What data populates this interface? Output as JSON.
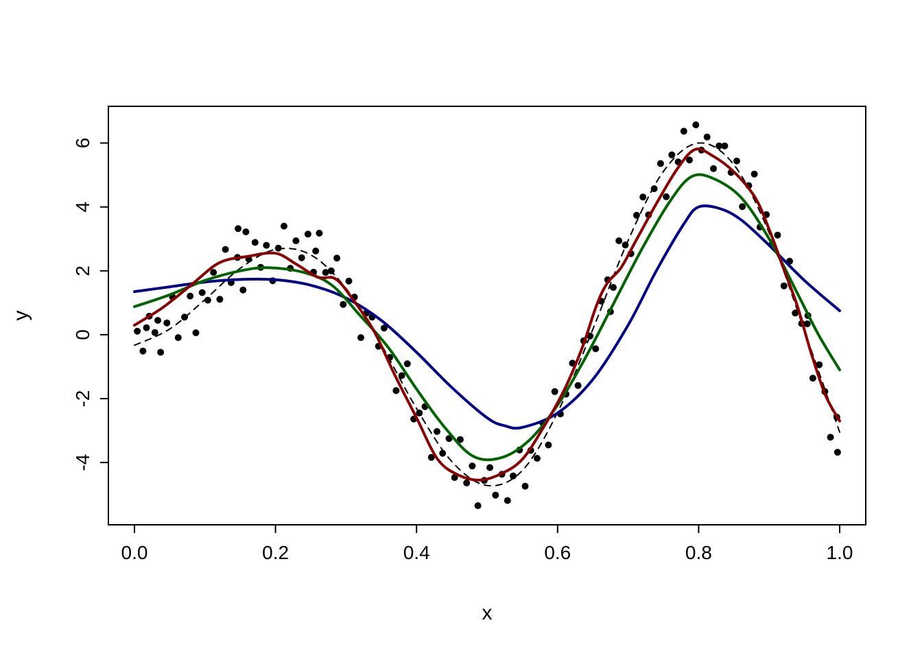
{
  "figure": {
    "background": "#ffffff",
    "description": "R-style scatter plot of noisy observations with true function (dashed) and three smoothing fits"
  },
  "chart_data": {
    "type": "scatter",
    "title": "",
    "xlabel": "x",
    "ylabel": "y",
    "xlim": [
      -0.037,
      1.037
    ],
    "ylim": [
      -5.95,
      7.15
    ],
    "xticks": [
      0.0,
      0.2,
      0.4,
      0.6,
      0.8,
      1.0
    ],
    "yticks": [
      -4,
      -2,
      0,
      2,
      4,
      6
    ],
    "xtick_labels": [
      "0.0",
      "0.2",
      "0.4",
      "0.6",
      "0.8",
      "1.0"
    ],
    "ytick_labels": [
      "-4",
      "-2",
      "0",
      "2",
      "4",
      "6"
    ],
    "grid": false,
    "legend": "none",
    "colors": {
      "points": "#000000",
      "true_function": "#000000",
      "fit_low_df": "#00008B",
      "fit_mid_df": "#006400",
      "fit_high_df": "#8B0000"
    },
    "series": [
      {
        "name": "observations",
        "type": "scatter",
        "color": "#000000",
        "marker": "circle",
        "size": 5,
        "x": [
          0.004,
          0.012,
          0.021,
          0.029,
          0.037,
          0.046,
          0.054,
          0.062,
          0.071,
          0.079,
          0.087,
          0.096,
          0.104,
          0.112,
          0.121,
          0.129,
          0.137,
          0.146,
          0.154,
          0.162,
          0.171,
          0.179,
          0.187,
          0.196,
          0.204,
          0.212,
          0.221,
          0.229,
          0.237,
          0.246,
          0.254,
          0.262,
          0.271,
          0.279,
          0.287,
          0.296,
          0.304,
          0.312,
          0.321,
          0.329,
          0.337,
          0.346,
          0.354,
          0.362,
          0.371,
          0.379,
          0.387,
          0.396,
          0.404,
          0.412,
          0.421,
          0.429,
          0.437,
          0.446,
          0.454,
          0.462,
          0.471,
          0.479,
          0.487,
          0.496,
          0.504,
          0.512,
          0.521,
          0.529,
          0.537,
          0.546,
          0.554,
          0.562,
          0.571,
          0.579,
          0.587,
          0.596,
          0.604,
          0.612,
          0.621,
          0.629,
          0.637,
          0.646,
          0.654,
          0.662,
          0.671,
          0.679,
          0.687,
          0.696,
          0.704,
          0.712,
          0.721,
          0.729,
          0.737,
          0.746,
          0.754,
          0.762,
          0.771,
          0.779,
          0.787,
          0.796,
          0.804,
          0.812,
          0.821,
          0.829,
          0.837,
          0.846,
          0.854,
          0.862,
          0.871,
          0.879,
          0.887,
          0.896,
          0.904,
          0.912,
          0.921,
          0.929,
          0.937,
          0.946,
          0.954,
          0.962,
          0.971,
          0.979,
          0.987,
          0.996,
          0.147,
          0.158,
          0.017,
          0.033,
          0.675,
          0.997,
          0.955,
          0.257
        ],
        "y": [
          0.11,
          -0.51,
          0.58,
          0.07,
          -0.55,
          0.37,
          1.18,
          -0.09,
          0.55,
          1.21,
          0.06,
          1.32,
          1.08,
          1.95,
          1.11,
          2.67,
          1.63,
          2.42,
          1.4,
          2.37,
          2.89,
          2.11,
          2.8,
          1.69,
          2.71,
          3.4,
          2.08,
          2.94,
          2.41,
          3.15,
          1.96,
          3.18,
          1.95,
          2.0,
          2.4,
          0.95,
          1.68,
          1.18,
          -0.09,
          0.68,
          0.55,
          -0.36,
          0.21,
          -0.71,
          -1.75,
          -1.28,
          -0.91,
          -2.64,
          -2.45,
          -2.25,
          -3.84,
          -3.03,
          -3.71,
          -3.25,
          -4.47,
          -3.28,
          -4.64,
          -4.11,
          -5.35,
          -4.56,
          -4.16,
          -5.02,
          -4.37,
          -5.19,
          -4.42,
          -3.61,
          -4.74,
          -3.62,
          -3.87,
          -2.76,
          -3.45,
          -1.78,
          -2.48,
          -1.86,
          -0.89,
          -1.59,
          -0.19,
          -0.04,
          -0.44,
          1.05,
          1.72,
          1.48,
          2.94,
          2.81,
          2.54,
          3.74,
          4.31,
          3.75,
          4.57,
          5.36,
          4.32,
          5.63,
          5.41,
          6.37,
          5.47,
          6.57,
          5.78,
          6.19,
          5.2,
          5.91,
          5.91,
          5.08,
          5.44,
          4.01,
          4.67,
          5.03,
          3.37,
          3.76,
          2.83,
          3.12,
          1.53,
          2.3,
          0.68,
          0.35,
          0.34,
          -1.36,
          -0.94,
          -1.78,
          -3.21,
          -2.58,
          3.32,
          3.22,
          0.22,
          0.45,
          0.72,
          -3.68,
          0.6,
          2.62
        ]
      },
      {
        "name": "true-function",
        "type": "line",
        "style": "dashed",
        "color": "#000000",
        "width": 2,
        "x": [
          0.0,
          0.05,
          0.1,
          0.15,
          0.2,
          0.25,
          0.3,
          0.35,
          0.4,
          0.45,
          0.5,
          0.55,
          0.6,
          0.65,
          0.7,
          0.75,
          0.8,
          0.85,
          0.9,
          0.95,
          1.0
        ],
        "y": [
          -0.33,
          0.18,
          1.1,
          2.08,
          2.67,
          2.5,
          1.45,
          -0.31,
          -2.31,
          -3.97,
          -4.72,
          -4.25,
          -2.43,
          0.17,
          2.95,
          5.11,
          6.0,
          5.32,
          3.19,
          0.13,
          -3.05
        ]
      },
      {
        "name": "smooth-fit-low-df",
        "type": "line",
        "style": "solid",
        "color": "#00008B",
        "width": 4,
        "x": [
          0.0,
          0.05,
          0.1,
          0.15,
          0.2,
          0.25,
          0.3,
          0.35,
          0.4,
          0.45,
          0.5,
          0.525,
          0.55,
          0.6,
          0.65,
          0.7,
          0.74,
          0.78,
          0.8,
          0.83,
          0.86,
          0.9,
          0.95,
          1.0
        ],
        "y": [
          1.35,
          1.5,
          1.65,
          1.73,
          1.72,
          1.55,
          1.15,
          0.45,
          -0.55,
          -1.65,
          -2.6,
          -2.85,
          -2.9,
          -2.45,
          -1.4,
          0.3,
          2.0,
          3.5,
          4.0,
          3.95,
          3.6,
          2.8,
          1.7,
          0.75
        ]
      },
      {
        "name": "smooth-fit-mid-df",
        "type": "line",
        "style": "solid",
        "color": "#006400",
        "width": 4,
        "x": [
          0.0,
          0.05,
          0.1,
          0.15,
          0.19,
          0.24,
          0.28,
          0.32,
          0.36,
          0.4,
          0.44,
          0.48,
          0.52,
          0.56,
          0.6,
          0.64,
          0.68,
          0.72,
          0.76,
          0.79,
          0.82,
          0.86,
          0.9,
          0.94,
          0.97,
          1.0
        ],
        "y": [
          0.88,
          1.25,
          1.7,
          2.0,
          2.1,
          1.95,
          1.55,
          0.6,
          -0.4,
          -1.7,
          -2.9,
          -3.8,
          -3.85,
          -3.3,
          -2.2,
          -0.7,
          1.0,
          2.7,
          4.2,
          4.95,
          4.9,
          4.3,
          3.0,
          1.3,
          0.0,
          -1.1
        ]
      },
      {
        "name": "smooth-fit-high-df",
        "type": "line",
        "style": "solid",
        "color": "#8B0000",
        "width": 4,
        "x": [
          0.0,
          0.04,
          0.08,
          0.12,
          0.16,
          0.2,
          0.23,
          0.26,
          0.285,
          0.31,
          0.34,
          0.37,
          0.4,
          0.43,
          0.46,
          0.49,
          0.52,
          0.55,
          0.58,
          0.61,
          0.635,
          0.655,
          0.67,
          0.69,
          0.71,
          0.74,
          0.77,
          0.795,
          0.82,
          0.85,
          0.88,
          0.9,
          0.92,
          0.94,
          0.96,
          0.98,
          1.0
        ],
        "y": [
          0.3,
          0.85,
          1.55,
          2.25,
          2.45,
          2.55,
          2.2,
          1.8,
          1.75,
          1.1,
          0.1,
          -1.3,
          -2.6,
          -3.9,
          -4.4,
          -4.55,
          -4.35,
          -3.9,
          -2.9,
          -1.7,
          -0.4,
          0.9,
          1.6,
          2.1,
          2.9,
          4.1,
          5.2,
          5.8,
          5.6,
          5.1,
          4.3,
          3.3,
          2.1,
          0.9,
          -0.6,
          -1.9,
          -2.7
        ]
      }
    ]
  }
}
